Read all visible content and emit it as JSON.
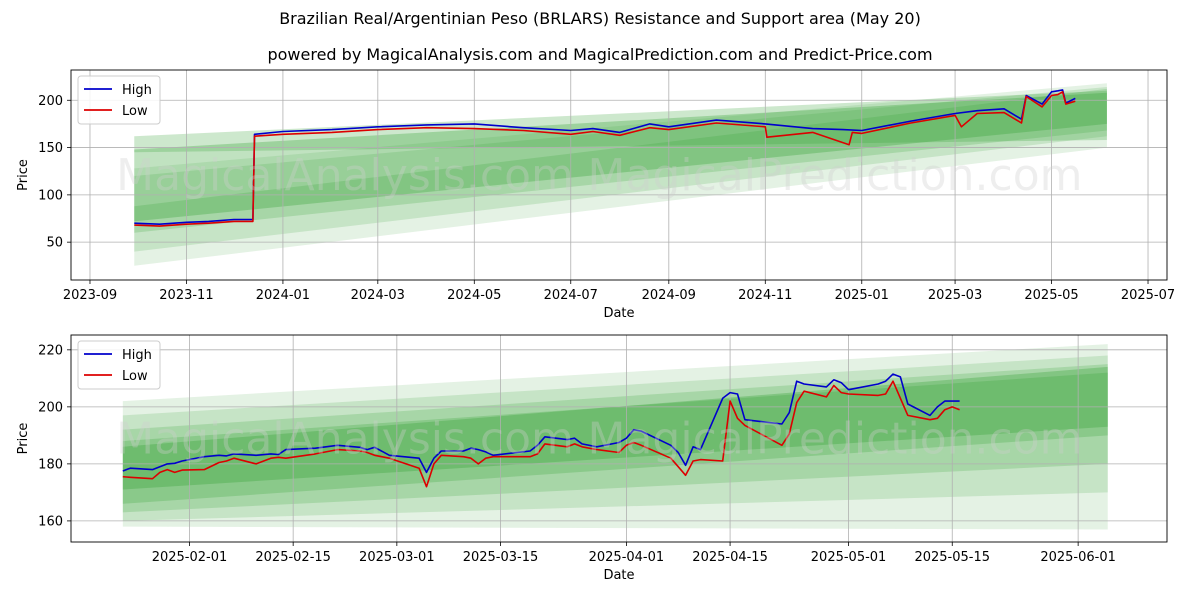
{
  "title": "Brazilian Real/Argentinian Peso (BRLARS) Resistance and Support area (May 20)",
  "subtitle": "powered by MagicalAnalysis.com and MagicalPrediction.com and Predict-Price.com",
  "watermarks": [
    "MagicalAnalysis.com",
    "MagicalPrediction.com"
  ],
  "colors": {
    "high": "#0000cc",
    "low": "#dd0000",
    "band": "#2e9e2e",
    "grid": "#b0b0b0"
  },
  "chart_data": [
    {
      "type": "line",
      "xlabel": "Date",
      "ylabel": "Price",
      "ylim": [
        10,
        232
      ],
      "yticks": [
        50,
        100,
        150,
        200
      ],
      "xticks": [
        "2023-09",
        "2023-11",
        "2024-01",
        "2024-03",
        "2024-05",
        "2024-07",
        "2024-09",
        "2024-11",
        "2025-01",
        "2025-03",
        "2025-05",
        "2025-07"
      ],
      "grid": true,
      "legend": "top-left",
      "series": [
        {
          "name": "High",
          "x": [
            "2023-09-29",
            "2023-10-15",
            "2023-11-01",
            "2023-11-15",
            "2023-12-01",
            "2023-12-13",
            "2023-12-14",
            "2024-01-01",
            "2024-02-01",
            "2024-03-01",
            "2024-04-01",
            "2024-05-01",
            "2024-06-01",
            "2024-07-01",
            "2024-07-15",
            "2024-08-01",
            "2024-08-20",
            "2024-09-01",
            "2024-10-01",
            "2024-11-01",
            "2024-12-01",
            "2024-12-20",
            "2025-01-01",
            "2025-02-01",
            "2025-03-01",
            "2025-03-15",
            "2025-04-01",
            "2025-04-12",
            "2025-04-15",
            "2025-04-25",
            "2025-05-01",
            "2025-05-05",
            "2025-05-08",
            "2025-05-10",
            "2025-05-16"
          ],
          "y": [
            70,
            69,
            71,
            72,
            74,
            74,
            164,
            167,
            169,
            172,
            174,
            175,
            171,
            168,
            170,
            166,
            175,
            172,
            179,
            175,
            170,
            169,
            168,
            178,
            186,
            189,
            191,
            180,
            205,
            196,
            209,
            210,
            211,
            197,
            202
          ]
        },
        {
          "name": "Low",
          "x": [
            "2023-09-29",
            "2023-10-15",
            "2023-11-01",
            "2023-11-15",
            "2023-12-01",
            "2023-12-13",
            "2023-12-14",
            "2024-01-01",
            "2024-02-01",
            "2024-03-01",
            "2024-04-01",
            "2024-05-01",
            "2024-06-01",
            "2024-07-01",
            "2024-07-15",
            "2024-08-01",
            "2024-08-20",
            "2024-09-01",
            "2024-10-01",
            "2024-11-01",
            "2024-11-02",
            "2024-12-01",
            "2024-12-24",
            "2024-12-26",
            "2025-01-01",
            "2025-02-01",
            "2025-03-01",
            "2025-03-05",
            "2025-03-15",
            "2025-04-01",
            "2025-04-12",
            "2025-04-15",
            "2025-04-25",
            "2025-05-01",
            "2025-05-05",
            "2025-05-08",
            "2025-05-10",
            "2025-05-16"
          ],
          "y": [
            68,
            67,
            69,
            70,
            72,
            72,
            162,
            164,
            166,
            169,
            171,
            170,
            168,
            164,
            167,
            163,
            171,
            169,
            176,
            172,
            161,
            166,
            153,
            166,
            165,
            176,
            184,
            172,
            186,
            187,
            176,
            204,
            193,
            205,
            206,
            209,
            196,
            199
          ]
        }
      ],
      "bands": [
        {
          "x": [
            "2023-09-29",
            "2025-06-05"
          ],
          "upper": [
            128,
            218
          ],
          "lower": [
            25,
            150
          ]
        },
        {
          "x": [
            "2023-09-29",
            "2025-06-05"
          ],
          "upper": [
            120,
            214
          ],
          "lower": [
            40,
            162
          ]
        },
        {
          "x": [
            "2023-09-29",
            "2025-06-05"
          ],
          "upper": [
            88,
            212
          ],
          "lower": [
            60,
            168
          ]
        },
        {
          "x": [
            "2023-09-29",
            "2025-06-05"
          ],
          "upper": [
            162,
            210
          ],
          "lower": [
            145,
            158
          ]
        },
        {
          "x": [
            "2023-09-29",
            "2025-06-05"
          ],
          "upper": [
            148,
            208
          ],
          "lower": [
            72,
            175
          ]
        }
      ]
    },
    {
      "type": "line",
      "xlabel": "Date",
      "ylabel": "Price",
      "ylim": [
        152.6,
        225.2
      ],
      "yticks": [
        160,
        180,
        200,
        220
      ],
      "xticks": [
        "2025-02-01",
        "2025-02-15",
        "2025-03-01",
        "2025-03-15",
        "2025-04-01",
        "2025-04-15",
        "2025-05-01",
        "2025-05-15",
        "2025-06-01"
      ],
      "grid": true,
      "legend": "top-left",
      "series": [
        {
          "name": "High",
          "x": [
            "2025-01-23",
            "2025-01-24",
            "2025-01-27",
            "2025-01-28",
            "2025-01-29",
            "2025-01-30",
            "2025-01-31",
            "2025-02-03",
            "2025-02-05",
            "2025-02-06",
            "2025-02-07",
            "2025-02-10",
            "2025-02-12",
            "2025-02-13",
            "2025-02-14",
            "2025-02-18",
            "2025-02-21",
            "2025-02-24",
            "2025-02-25",
            "2025-02-26",
            "2025-02-28",
            "2025-03-04",
            "2025-03-05",
            "2025-03-06",
            "2025-03-07",
            "2025-03-10",
            "2025-03-11",
            "2025-03-12",
            "2025-03-13",
            "2025-03-14",
            "2025-03-19",
            "2025-03-20",
            "2025-03-21",
            "2025-03-24",
            "2025-03-25",
            "2025-03-26",
            "2025-03-28",
            "2025-03-31",
            "2025-04-01",
            "2025-04-02",
            "2025-04-03",
            "2025-04-07",
            "2025-04-08",
            "2025-04-09",
            "2025-04-10",
            "2025-04-11",
            "2025-04-14",
            "2025-04-15",
            "2025-04-16",
            "2025-04-17",
            "2025-04-22",
            "2025-04-23",
            "2025-04-24",
            "2025-04-25",
            "2025-04-28",
            "2025-04-29",
            "2025-04-30",
            "2025-05-01",
            "2025-05-05",
            "2025-05-06",
            "2025-05-07",
            "2025-05-08",
            "2025-05-09",
            "2025-05-12",
            "2025-05-13",
            "2025-05-14",
            "2025-05-15",
            "2025-05-16"
          ],
          "y": [
            177.5,
            178.5,
            178.0,
            179.0,
            180.0,
            180.2,
            181.0,
            182.5,
            183.0,
            182.8,
            183.5,
            183.0,
            183.5,
            183.3,
            185.0,
            185.5,
            186.5,
            185.8,
            185.0,
            185.8,
            183.0,
            182.0,
            177.0,
            182.0,
            184.5,
            184.5,
            185.5,
            185.0,
            184.2,
            183.0,
            184.5,
            186.5,
            189.5,
            188.5,
            189.0,
            187.0,
            186.0,
            187.5,
            189.0,
            192.0,
            191.5,
            186.5,
            184.0,
            179.5,
            186.0,
            185.0,
            203.0,
            205.0,
            204.5,
            195.5,
            194.0,
            198.0,
            209.0,
            208.0,
            207.0,
            209.5,
            208.5,
            206.0,
            208.0,
            209.0,
            211.5,
            210.5,
            201.0,
            197.0,
            200.0,
            202.0,
            202.0,
            202.0
          ]
        },
        {
          "name": "Low",
          "x": [
            "2025-01-23",
            "2025-01-24",
            "2025-01-27",
            "2025-01-28",
            "2025-01-29",
            "2025-01-30",
            "2025-01-31",
            "2025-02-03",
            "2025-02-05",
            "2025-02-06",
            "2025-02-07",
            "2025-02-10",
            "2025-02-12",
            "2025-02-13",
            "2025-02-14",
            "2025-02-18",
            "2025-02-21",
            "2025-02-24",
            "2025-02-25",
            "2025-02-26",
            "2025-02-28",
            "2025-03-04",
            "2025-03-05",
            "2025-03-06",
            "2025-03-07",
            "2025-03-10",
            "2025-03-11",
            "2025-03-12",
            "2025-03-13",
            "2025-03-14",
            "2025-03-19",
            "2025-03-20",
            "2025-03-21",
            "2025-03-24",
            "2025-03-25",
            "2025-03-26",
            "2025-03-28",
            "2025-03-31",
            "2025-04-01",
            "2025-04-02",
            "2025-04-03",
            "2025-04-07",
            "2025-04-08",
            "2025-04-09",
            "2025-04-10",
            "2025-04-11",
            "2025-04-14",
            "2025-04-15",
            "2025-04-16",
            "2025-04-17",
            "2025-04-22",
            "2025-04-23",
            "2025-04-24",
            "2025-04-25",
            "2025-04-28",
            "2025-04-29",
            "2025-04-30",
            "2025-05-01",
            "2025-05-05",
            "2025-05-06",
            "2025-05-07",
            "2025-05-08",
            "2025-05-09",
            "2025-05-12",
            "2025-05-13",
            "2025-05-14",
            "2025-05-15",
            "2025-05-16"
          ],
          "y": [
            175.5,
            175.3,
            174.8,
            177.0,
            178.0,
            177.0,
            177.8,
            178.0,
            180.5,
            181.0,
            182.0,
            180.0,
            182.0,
            182.3,
            182.0,
            183.5,
            185.0,
            184.5,
            184.0,
            183.0,
            182.0,
            178.5,
            172.0,
            180.0,
            183.0,
            182.5,
            182.0,
            180.0,
            182.0,
            182.5,
            182.5,
            183.5,
            187.0,
            186.0,
            187.0,
            186.0,
            185.0,
            184.0,
            186.5,
            187.5,
            186.5,
            182.0,
            179.0,
            176.0,
            181.0,
            181.5,
            181.0,
            202.0,
            196.0,
            193.5,
            186.5,
            190.5,
            201.5,
            205.5,
            203.5,
            207.5,
            205.0,
            204.5,
            204.0,
            204.5,
            209.0,
            203.0,
            197.0,
            195.5,
            196.0,
            199.0,
            200.0,
            199.0
          ]
        }
      ],
      "bands": [
        {
          "x": [
            "2025-01-23",
            "2025-06-05"
          ],
          "upper": [
            202,
            222
          ],
          "lower": [
            158,
            157
          ]
        },
        {
          "x": [
            "2025-01-23",
            "2025-06-05"
          ],
          "upper": [
            197,
            218
          ],
          "lower": [
            160,
            170
          ]
        },
        {
          "x": [
            "2025-01-23",
            "2025-06-05"
          ],
          "upper": [
            192,
            215
          ],
          "lower": [
            163,
            180
          ]
        },
        {
          "x": [
            "2025-01-23",
            "2025-06-05"
          ],
          "upper": [
            188,
            212
          ],
          "lower": [
            166,
            190
          ]
        },
        {
          "x": [
            "2025-01-23",
            "2025-06-05"
          ],
          "upper": [
            186,
            214
          ],
          "lower": [
            171,
            193
          ]
        }
      ]
    }
  ]
}
